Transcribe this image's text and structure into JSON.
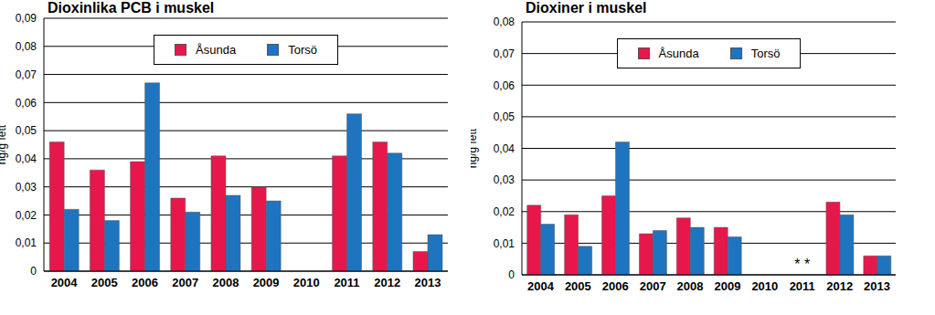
{
  "chart_data": [
    {
      "type": "bar",
      "title": "Dioxinlika PCB i muskel",
      "ylabel": "ng/g fett",
      "categories": [
        "2004",
        "2005",
        "2006",
        "2007",
        "2008",
        "2009",
        "2010",
        "2011",
        "2012",
        "2013"
      ],
      "series": [
        {
          "name": "Åsunda",
          "color": "#e8174b",
          "values": [
            0.046,
            0.036,
            0.039,
            0.026,
            0.041,
            0.03,
            null,
            0.041,
            0.046,
            0.007
          ]
        },
        {
          "name": "Torsö",
          "color": "#1f74c0",
          "values": [
            0.022,
            0.018,
            0.067,
            0.021,
            0.027,
            0.025,
            null,
            0.056,
            0.042,
            0.013
          ]
        }
      ],
      "ylim": [
        0,
        0.09
      ],
      "yticks": [
        0,
        {
          "value": 0.01,
          "label": "0,01"
        },
        {
          "value": 0.02,
          "label": "0,02"
        },
        {
          "value": 0.03,
          "label": "0,03"
        },
        {
          "value": 0.04,
          "label": "0,04"
        },
        {
          "value": 0.05,
          "label": "0,05"
        },
        {
          "value": 0.06,
          "label": "0,06"
        },
        {
          "value": 0.07,
          "label": "0,07"
        },
        {
          "value": 0.08,
          "label": "0,08"
        },
        {
          "value": 0.09,
          "label": "0,09"
        }
      ],
      "grid": true,
      "legend": "top"
    },
    {
      "type": "bar",
      "title": "Dioxiner i muskel",
      "ylabel": "ng/g fett",
      "categories": [
        "2004",
        "2005",
        "2006",
        "2007",
        "2008",
        "2009",
        "2010",
        "2011",
        "2012",
        "2013"
      ],
      "series": [
        {
          "name": "Åsunda",
          "color": "#e8174b",
          "values": [
            0.022,
            0.019,
            0.025,
            0.013,
            0.018,
            0.015,
            null,
            null,
            0.023,
            0.006
          ]
        },
        {
          "name": "Torsö",
          "color": "#1f74c0",
          "values": [
            0.016,
            0.009,
            0.042,
            0.014,
            0.015,
            0.012,
            null,
            null,
            0.019,
            0.006
          ]
        }
      ],
      "ylim": [
        0,
        0.08
      ],
      "yticks": [
        0,
        {
          "value": 0.01,
          "label": "0,01"
        },
        {
          "value": 0.02,
          "label": "0,02"
        },
        {
          "value": 0.03,
          "label": "0,03"
        },
        {
          "value": 0.04,
          "label": "0,04"
        },
        {
          "value": 0.05,
          "label": "0,05"
        },
        {
          "value": 0.06,
          "label": "0,06"
        },
        {
          "value": 0.07,
          "label": "0,07"
        },
        {
          "value": 0.08,
          "label": "0,08"
        }
      ],
      "grid": true,
      "legend": "top",
      "annotations": [
        {
          "x": "2011",
          "text": "* *"
        }
      ]
    }
  ]
}
